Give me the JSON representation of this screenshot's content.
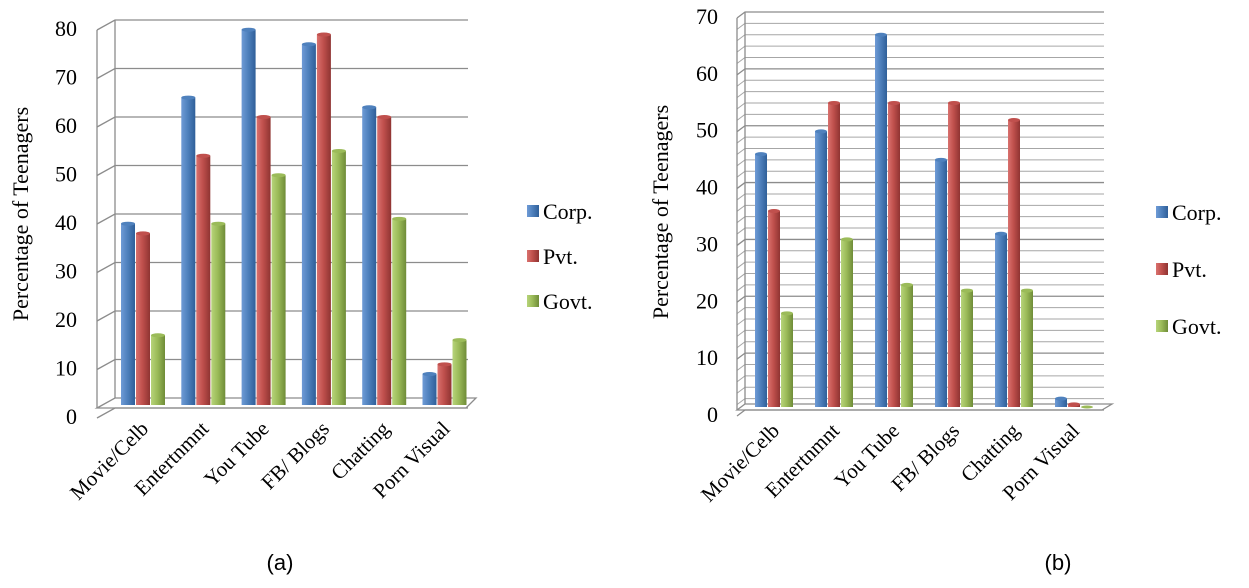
{
  "chart_data": [
    {
      "type": "bar",
      "caption": "(a)",
      "ylabel": "Percentage of Teenagers",
      "ylim": [
        0,
        80
      ],
      "yticks": [
        0,
        10,
        20,
        30,
        40,
        50,
        60,
        70,
        80
      ],
      "grid": "major",
      "legend_position": "right",
      "categories": [
        "Movie/Celb",
        "Entertnmnt",
        "You Tube",
        "FB/ Blogs",
        "Chatting",
        "Porn Visual"
      ],
      "series": [
        {
          "name": "Corp.",
          "color": "#4f81bd",
          "values": [
            38,
            64,
            78,
            75,
            62,
            7
          ]
        },
        {
          "name": "Pvt.",
          "color": "#c0504d",
          "values": [
            36,
            52,
            60,
            77,
            60,
            9
          ]
        },
        {
          "name": "Govt.",
          "color": "#9bbb59",
          "values": [
            15,
            38,
            48,
            53,
            39,
            14
          ]
        }
      ]
    },
    {
      "type": "bar",
      "caption": "(b)",
      "ylabel": "Percentage of Teenagers",
      "ylim": [
        0,
        70
      ],
      "yticks": [
        0,
        10,
        20,
        30,
        40,
        50,
        60,
        70
      ],
      "grid": "major+minor",
      "legend_position": "right",
      "categories": [
        "Movie/Celb",
        "Entertnmnt",
        "You Tube",
        "FB/ Blogs",
        "Chatting",
        "Porn Visual"
      ],
      "series": [
        {
          "name": "Corp.",
          "color": "#4f81bd",
          "values": [
            45,
            49,
            66,
            44,
            31,
            2
          ]
        },
        {
          "name": "Pvt.",
          "color": "#c0504d",
          "values": [
            35,
            54,
            54,
            54,
            51,
            1
          ]
        },
        {
          "name": "Govt.",
          "color": "#9bbb59",
          "values": [
            17,
            30,
            22,
            21,
            21,
            0
          ]
        }
      ]
    }
  ]
}
